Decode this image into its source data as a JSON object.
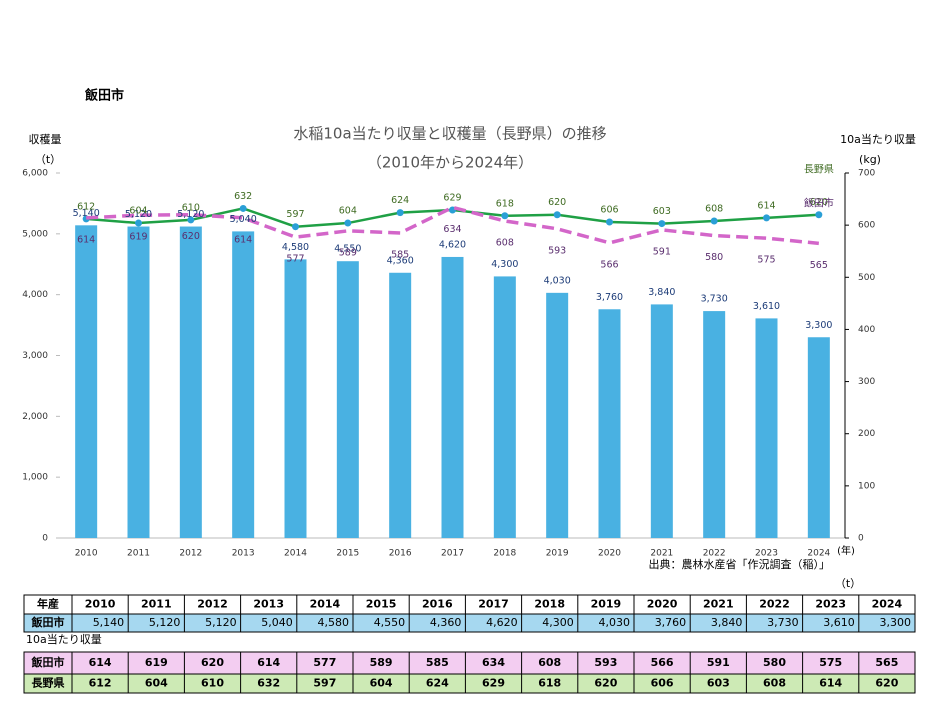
{
  "heading": "飯田市",
  "chart_data": {
    "type": "bar",
    "title": "水稲10a当たり収量と収穫量（長野県）の推移",
    "subtitle": "（2010年から2024年）",
    "y_label": "収穫量",
    "y_unit": "（t）",
    "y2_label": "10a当たり収量",
    "y2_unit": "(kg)",
    "x_unit": "(年)",
    "source": "出典：農林水産省「作況調査（稲）」",
    "categories": [
      "2010",
      "2011",
      "2012",
      "2013",
      "2014",
      "2015",
      "2016",
      "2017",
      "2018",
      "2019",
      "2020",
      "2021",
      "2022",
      "2023",
      "2024"
    ],
    "series": [
      {
        "name": "飯田市",
        "type": "bar",
        "color": "#49b1e2",
        "label_position": "above",
        "values": [
          5140,
          5120,
          5120,
          5040,
          4580,
          4550,
          4360,
          4620,
          4300,
          4030,
          3760,
          3840,
          3730,
          3610,
          3300
        ],
        "value_labels": [
          "5,140",
          "5,120",
          "5,120",
          "5,040",
          "4,580",
          "4,550",
          "4,360",
          "4,620",
          "4,300",
          "4,030",
          "3,760",
          "3,840",
          "3,730",
          "3,610",
          "3,300"
        ]
      },
      {
        "name": "長野県",
        "type": "line",
        "axis": "y2",
        "color": "#1fa045",
        "line_style": "solid",
        "markers": true,
        "label_position": "above",
        "values": [
          612,
          604,
          610,
          632,
          597,
          604,
          624,
          629,
          618,
          620,
          606,
          603,
          608,
          614,
          620
        ]
      },
      {
        "name": "飯田市",
        "type": "line",
        "axis": "y2",
        "color": "#d366c9",
        "line_style": "dashed",
        "markers": false,
        "label_position": "below",
        "values": [
          614,
          619,
          620,
          614,
          577,
          589,
          585,
          634,
          608,
          593,
          566,
          591,
          580,
          575,
          565
        ]
      }
    ],
    "ylim": [
      0,
      6000
    ],
    "yticks": [
      0,
      {
        "value": 1000,
        "label": "1,000"
      },
      {
        "value": 2000,
        "label": "2,000"
      },
      {
        "value": 3000,
        "label": "3,000"
      },
      {
        "value": 4000,
        "label": "4,000"
      },
      {
        "value": 5000,
        "label": "5,000"
      },
      {
        "value": 6000,
        "label": "6,000"
      }
    ],
    "y2lim": [
      0,
      700
    ],
    "y2ticks": [
      0,
      100,
      200,
      300,
      400,
      500,
      600,
      700
    ]
  },
  "table": {
    "corner": "年産",
    "unit": "（t）",
    "yield_caption": "10a当たり収量"
  }
}
